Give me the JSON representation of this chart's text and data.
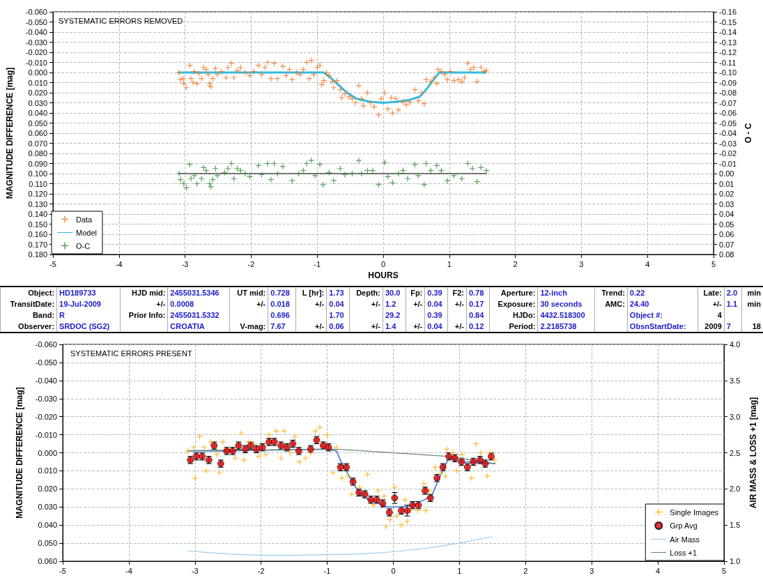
{
  "chart_data": [
    {
      "type": "scatter",
      "title": "SYSTEMATIC ERRORS REMOVED",
      "xlabel": "HOURS",
      "ylabel": "MAGNITUDE DIFFERENCE [mag]",
      "y2label": "O - C",
      "grid": true,
      "legend": "bottom left",
      "xlim": [
        -5,
        5
      ],
      "xticks": [
        -5,
        -4,
        -3,
        -2,
        -1,
        0,
        1,
        2,
        3,
        4,
        5
      ],
      "ylim": [
        0.18,
        -0.06
      ],
      "yticks": [
        {
          "value": -0.06,
          "label": "-0.060"
        },
        {
          "value": -0.05,
          "label": "-0.050"
        },
        {
          "value": -0.04,
          "label": "-0.040"
        },
        {
          "value": -0.03,
          "label": "-0.030"
        },
        {
          "value": -0.02,
          "label": "-0.020"
        },
        {
          "value": -0.01,
          "label": "-0.010"
        },
        {
          "value": 0,
          "label": "0.000"
        },
        {
          "value": 0.01,
          "label": "0.010"
        },
        {
          "value": 0.02,
          "label": "0.020"
        },
        {
          "value": 0.03,
          "label": "0.030"
        },
        {
          "value": 0.04,
          "label": "0.040"
        },
        {
          "value": 0.05,
          "label": "0.050"
        },
        {
          "value": 0.06,
          "label": "0.060"
        },
        {
          "value": 0.07,
          "label": "0.070"
        },
        {
          "value": 0.08,
          "label": "0.080"
        },
        {
          "value": 0.09,
          "label": "0.090"
        },
        {
          "value": 0.1,
          "label": "0.100"
        },
        {
          "value": 0.11,
          "label": "0.110"
        },
        {
          "value": 0.12,
          "label": "0.120"
        },
        {
          "value": 0.13,
          "label": "0.130"
        },
        {
          "value": 0.14,
          "label": "0.140"
        },
        {
          "value": 0.15,
          "label": "0.150"
        },
        {
          "value": 0.16,
          "label": "0.160"
        },
        {
          "value": 0.17,
          "label": "0.170"
        },
        {
          "value": 0.18,
          "label": "0.180"
        }
      ],
      "y2lim": [
        0.08,
        -0.16
      ],
      "y2ticks": [
        {
          "value": -0.16,
          "label": "-0.16"
        },
        {
          "value": -0.15,
          "label": "-0.15"
        },
        {
          "value": -0.14,
          "label": "-0.14"
        },
        {
          "value": -0.13,
          "label": "-0.13"
        },
        {
          "value": -0.12,
          "label": "-0.12"
        },
        {
          "value": -0.11,
          "label": "-0.11"
        },
        {
          "value": -0.1,
          "label": "-0.10"
        },
        {
          "value": -0.09,
          "label": "-0.09"
        },
        {
          "value": -0.08,
          "label": "-0.08"
        },
        {
          "value": -0.07,
          "label": "-0.07"
        },
        {
          "value": -0.06,
          "label": "-0.06"
        },
        {
          "value": -0.05,
          "label": "-0.05"
        },
        {
          "value": -0.04,
          "label": "-0.04"
        },
        {
          "value": -0.03,
          "label": "-0.03"
        },
        {
          "value": -0.02,
          "label": "-0.02"
        },
        {
          "value": -0.01,
          "label": "-0.01"
        },
        {
          "value": 0,
          "label": "0.00"
        },
        {
          "value": 0.01,
          "label": "0.01"
        },
        {
          "value": 0.02,
          "label": "0.02"
        },
        {
          "value": 0.03,
          "label": "0.03"
        },
        {
          "value": 0.04,
          "label": "0.04"
        },
        {
          "value": 0.05,
          "label": "0.05"
        },
        {
          "value": 0.06,
          "label": "0.06"
        },
        {
          "value": 0.07,
          "label": "0.07"
        },
        {
          "value": 0.08,
          "label": "0.08"
        }
      ],
      "series": [
        {
          "type": "scatter",
          "name": "Data",
          "color": "#f07020",
          "marker": "cross",
          "x": [
            -3.09,
            -3.07,
            -3.03,
            -3.02,
            -2.98,
            -2.93,
            -2.91,
            -2.88,
            -2.86,
            -2.82,
            -2.79,
            -2.75,
            -2.72,
            -2.68,
            -2.65,
            -2.63,
            -2.61,
            -2.58,
            -2.54,
            -2.51,
            -2.45,
            -2.38,
            -2.35,
            -2.3,
            -2.26,
            -2.21,
            -2.16,
            -2.09,
            -2.02,
            -1.96,
            -1.89,
            -1.84,
            -1.79,
            -1.75,
            -1.7,
            -1.65,
            -1.6,
            -1.52,
            -1.47,
            -1.42,
            -1.38,
            -1.31,
            -1.26,
            -1.21,
            -1.16,
            -1.12,
            -1.09,
            -1.05,
            -1.0,
            -0.96,
            -0.93,
            -0.9,
            -0.86,
            -0.82,
            -0.77,
            -0.75,
            -0.7,
            -0.65,
            -0.63,
            -0.58,
            -0.52,
            -0.47,
            -0.42,
            -0.37,
            -0.33,
            -0.3,
            -0.24,
            -0.19,
            -0.14,
            -0.07,
            -0.03,
            0.02,
            0.07,
            0.12,
            0.14,
            0.19,
            0.23,
            0.3,
            0.35,
            0.4,
            0.48,
            0.53,
            0.58,
            0.62,
            0.65,
            0.72,
            0.77,
            0.81,
            0.83,
            0.88,
            0.93,
            0.97,
            1.02,
            1.07,
            1.14,
            1.19,
            1.23,
            1.28,
            1.32,
            1.37,
            1.42,
            1.48,
            1.53,
            1.56
          ],
          "values": [
            0,
            0.007,
            0.006,
            0.011,
            0.015,
            -0.007,
            0.006,
            0.01,
            -0.001,
            0.011,
            0.001,
            0.006,
            -0.005,
            -0.003,
            0.002,
            0.011,
            0.014,
            0.006,
            -0.004,
            0.002,
            -0.001,
            0.005,
            -0.005,
            -0.009,
            0.005,
            -0.002,
            -0.005,
            0,
            0.003,
            -0.001,
            -0.007,
            0.002,
            -0.005,
            -0.01,
            0.006,
            -0.009,
            0.006,
            -0.006,
            0.003,
            -0.003,
            0.007,
            0,
            0.002,
            -0.003,
            -0.01,
            0.006,
            -0.012,
            0.002,
            -0.005,
            -0.007,
            0.012,
            0.008,
            0,
            0.003,
            0.009,
            0.015,
            0.008,
            0.017,
            0.025,
            0.021,
            0.024,
            0.026,
            0.03,
            0.013,
            0.026,
            0.033,
            0.02,
            0.03,
            0.034,
            0.042,
            0.026,
            0.02,
            0.036,
            0.025,
            0.04,
            0.026,
            0.037,
            0.029,
            0.032,
            0.029,
            0.017,
            0.028,
            0.02,
            0.031,
            0.007,
            0.009,
            0.005,
            0.011,
            -0.003,
            -0.001,
            0.002,
            0.007,
            -0.001,
            0.008,
            0.007,
            0.009,
            0.005,
            -0.009,
            -0.003,
            -0.005,
            0.009,
            -0.005,
            -0.001,
            -0.002
          ]
        },
        {
          "type": "line",
          "name": "Model",
          "color": "#33bbdd",
          "marker": "none",
          "x": [
            -3.1,
            -0.9,
            -0.8,
            -0.7,
            -0.6,
            -0.5,
            -0.4,
            -0.2,
            0,
            0.2,
            0.4,
            0.55,
            0.65,
            0.75,
            0.85,
            1.55
          ],
          "values": [
            0,
            0,
            0.005,
            0.011,
            0.017,
            0.022,
            0.026,
            0.029,
            0.03,
            0.029,
            0.027,
            0.024,
            0.017,
            0.008,
            0,
            0
          ]
        },
        {
          "type": "scatter",
          "name": "O-C",
          "color": "#2e8b2e",
          "marker": "cross",
          "axis": "y2",
          "x": [
            -3.09,
            -3.07,
            -3.02,
            -2.98,
            -2.93,
            -2.91,
            -2.86,
            -2.82,
            -2.75,
            -2.72,
            -2.68,
            -2.63,
            -2.61,
            -2.58,
            -2.54,
            -2.51,
            -2.4,
            -2.35,
            -2.3,
            -2.26,
            -2.21,
            -2.16,
            -2.09,
            -2.02,
            -1.89,
            -1.84,
            -1.75,
            -1.7,
            -1.65,
            -1.6,
            -1.52,
            -1.38,
            -1.28,
            -1.21,
            -1.16,
            -1.09,
            -1.03,
            -0.96,
            -0.91,
            -0.82,
            -0.75,
            -0.65,
            -0.58,
            -0.47,
            -0.37,
            -0.33,
            -0.24,
            -0.16,
            -0.07,
            0.02,
            0.07,
            0.14,
            0.23,
            0.3,
            0.37,
            0.48,
            0.53,
            0.62,
            0.65,
            0.72,
            0.81,
            0.88,
            0.97,
            1.07,
            1.19,
            1.28,
            1.35,
            1.42,
            1.48,
            1.56
          ],
          "values": [
            0,
            0.006,
            0.01,
            0.014,
            -0.009,
            0.005,
            0.002,
            0.01,
            0.005,
            -0.006,
            -0.003,
            0.01,
            0.013,
            0.006,
            -0.005,
            0.002,
            -0.001,
            -0.005,
            -0.01,
            0.005,
            -0.005,
            -0.003,
            0,
            0.003,
            -0.008,
            0.001,
            -0.01,
            0.006,
            -0.01,
            0,
            -0.007,
            0.007,
            0,
            -0.003,
            -0.01,
            -0.013,
            0.002,
            -0.009,
            0.011,
            -0.001,
            0.007,
            -0.005,
            0.001,
            0,
            -0.013,
            0,
            -0.003,
            -0.003,
            0.011,
            -0.011,
            0.003,
            0.009,
            0,
            -0.003,
            0.005,
            -0.009,
            0.002,
            0.011,
            -0.01,
            -0.003,
            -0.008,
            -0.003,
            0.007,
            0.002,
            0.005,
            -0.01,
            -0.005,
            0.008,
            -0.006,
            -0.003
          ]
        },
        {
          "type": "line",
          "color": "#000000",
          "marker": "none",
          "axis": "y2",
          "x": [
            -3.1,
            1.56
          ],
          "values": [
            0,
            0
          ]
        }
      ]
    },
    {
      "type": "other",
      "cell_labels": [
        [
          "Object:",
          "HD189733",
          "HJD mid:",
          "2455031.5346",
          "UT mid:",
          "0.728",
          "L [hr]:",
          "1.73",
          "Depth:",
          "30.0",
          "Fp:",
          "0.39",
          "F2:",
          "0.78",
          "Aperture:",
          "12-inch",
          "Trend:",
          "0.22",
          "Late:",
          "2.0",
          "min"
        ],
        [
          "TransitDate:",
          "19-Jul-2009",
          "+/-",
          "0.0008",
          "+/-",
          "0.018",
          "+/-",
          "0.04",
          "+/-",
          "1.2",
          "+/-",
          "0.04",
          "+/-",
          "0.17",
          "Exposure:",
          "30 seconds",
          "AMC:",
          "24.40",
          "+/-",
          "1.1",
          "min"
        ],
        [
          "Band:",
          "R",
          "Prior Info:",
          "2455031.5332",
          null,
          "0.696",
          null,
          "1.70",
          null,
          "29.2",
          null,
          "0.39",
          null,
          "0.84",
          "HJDo:",
          "4432.518300",
          null,
          "Object #:",
          "4",
          null,
          null
        ],
        [
          "Observer:",
          "SRDOC (SG2)",
          null,
          "CROATIA",
          "V-mag:",
          "7.67",
          "+/-",
          "0.06",
          "+/-",
          "1.4",
          "+/-",
          "0.04",
          "+/-",
          "0.12",
          "Period:",
          "2.2185738",
          null,
          "ObsnStartDate:",
          "2009",
          "7",
          "18"
        ]
      ]
    },
    {
      "type": "scatter",
      "title": "SYSTEMATIC ERRORS PRESENT",
      "ylabel": "MAGNITUDE DIFFERENCE [mag]",
      "y2label": "AIR MASS & LOSS +1 [mag]",
      "grid": true,
      "legend": "bottom right",
      "xlim": [
        -5,
        5
      ],
      "xticks": [
        -5,
        -4,
        -3,
        -2,
        -1,
        0,
        1,
        2,
        3,
        4,
        5
      ],
      "ylim": [
        0.06,
        -0.06
      ],
      "yticks": [
        {
          "value": -0.06,
          "label": "-0.060"
        },
        {
          "value": -0.05,
          "label": "-0.050"
        },
        {
          "value": -0.04,
          "label": "-0.040"
        },
        {
          "value": -0.03,
          "label": "-0.030"
        },
        {
          "value": -0.02,
          "label": "-0.020"
        },
        {
          "value": -0.01,
          "label": "-0.010"
        },
        {
          "value": 0,
          "label": "0.000"
        },
        {
          "value": 0.01,
          "label": "0.010"
        },
        {
          "value": 0.02,
          "label": "0.020"
        },
        {
          "value": 0.03,
          "label": "0.030"
        },
        {
          "value": 0.04,
          "label": "0.040"
        },
        {
          "value": 0.05,
          "label": "0.050"
        },
        {
          "value": 0.06,
          "label": "0.060"
        }
      ],
      "y2lim": [
        1,
        4
      ],
      "y2ticks": [
        {
          "value": 1,
          "label": "1.0"
        },
        {
          "value": 1.5,
          "label": "1.5"
        },
        {
          "value": 2,
          "label": "2.0"
        },
        {
          "value": 2.5,
          "label": "2.5"
        },
        {
          "value": 3,
          "label": "3.0"
        },
        {
          "value": 3.5,
          "label": "3.5"
        },
        {
          "value": 4,
          "label": "4.0"
        }
      ],
      "series": [
        {
          "type": "scatter",
          "name": "Single Images",
          "color": "#ffaa00",
          "marker": "cross",
          "x": [
            -3.11,
            -3.02,
            -3.0,
            -2.93,
            -2.86,
            -2.83,
            -2.76,
            -2.67,
            -2.63,
            -2.58,
            -2.49,
            -2.39,
            -2.3,
            -2.26,
            -2.19,
            -2.11,
            -2.04,
            -1.93,
            -1.88,
            -1.77,
            -1.7,
            -1.65,
            -1.56,
            -1.49,
            -1.42,
            -1.33,
            -1.25,
            -1.18,
            -1.11,
            -1.0,
            -0.91,
            -0.86,
            -0.78,
            -0.68,
            -0.63,
            -0.51,
            -0.39,
            -0.3,
            -0.23,
            -0.14,
            -0.11,
            -0.05,
            0.02,
            0.05,
            0.12,
            0.18,
            0.21,
            0.26,
            0.37,
            0.46,
            0.49,
            0.54,
            0.63,
            0.72,
            0.79,
            0.81,
            0.9,
            0.96,
            1.04,
            1.18,
            1.25,
            1.32,
            1.42,
            1.46,
            1.53
          ],
          "values": [
            -0.001,
            -0.003,
            0.014,
            -0.009,
            -0.003,
            0.01,
            -0.006,
            0.001,
            0.011,
            -0.006,
            -0.002,
            0.003,
            -0.011,
            0.004,
            -0.006,
            -0.005,
            0.002,
            0.001,
            -0.01,
            -0.012,
            0.003,
            -0.012,
            0,
            -0.009,
            0.005,
            0.003,
            0,
            -0.012,
            -0.014,
            -0.01,
            0.011,
            -0.003,
            0.014,
            0.013,
            0.023,
            0.019,
            0.012,
            0.029,
            0.021,
            0.024,
            0.041,
            0.037,
            0.019,
            0.035,
            0.04,
            0.026,
            0.038,
            0.032,
            0.032,
            0.017,
            0.032,
            0.021,
            0.008,
            0.011,
            0.013,
            -0.002,
            0,
            0.01,
            0.001,
            0.014,
            -0.005,
            0,
            0.013,
            0,
            0.004
          ]
        },
        {
          "type": "scatter",
          "name": "Grp Avg",
          "color": "#e00000",
          "marker": "circle",
          "x": [
            -3.07,
            -2.98,
            -2.89,
            -2.79,
            -2.71,
            -2.61,
            -2.52,
            -2.43,
            -2.34,
            -2.24,
            -2.16,
            -2.07,
            -1.98,
            -1.88,
            -1.8,
            -1.7,
            -1.61,
            -1.52,
            -1.43,
            -1.25,
            -1.16,
            -1.06,
            -0.98,
            -0.8,
            -0.71,
            -0.61,
            -0.52,
            -0.43,
            -0.34,
            -0.25,
            -0.16,
            -0.06,
            0.02,
            0.12,
            0.21,
            0.29,
            0.38,
            0.48,
            0.56,
            0.66,
            0.75,
            0.84,
            0.93,
            1.03,
            1.12,
            1.21,
            1.31,
            1.39,
            1.48
          ],
          "values": [
            0.004,
            0.002,
            0.002,
            0.004,
            -0.004,
            0.006,
            -0.001,
            -0.001,
            -0.004,
            -0.002,
            -0.004,
            -0.002,
            -0.003,
            -0.006,
            -0.006,
            -0.004,
            -0.003,
            -0.005,
            -0.001,
            -0.002,
            -0.007,
            -0.004,
            -0.003,
            0.008,
            0.008,
            0.016,
            0.022,
            0.023,
            0.026,
            0.026,
            0.028,
            0.033,
            0.025,
            0.032,
            0.032,
            0.029,
            0.029,
            0.021,
            0.025,
            0.014,
            0.008,
            0.002,
            0.003,
            0.005,
            0.008,
            0.005,
            0.004,
            0.006,
            0.002
          ],
          "errors": [
            0.002,
            0.002,
            0.002,
            0.002,
            0.002,
            0.002,
            0.002,
            0.002,
            0.002,
            0.002,
            0.002,
            0.002,
            0.002,
            0.002,
            0.002,
            0.002,
            0.002,
            0.002,
            0.002,
            0.002,
            0.002,
            0.002,
            0.002,
            0.002,
            0.002,
            0.002,
            0.002,
            0.002,
            0.002,
            0.002,
            0.002,
            0.002,
            0.003,
            0.002,
            0.003,
            0.002,
            0.002,
            0.002,
            0.002,
            0.002,
            0.002,
            0.002,
            0.002,
            0.002,
            0.002,
            0.002,
            0.002,
            0.002,
            0.002
          ]
        },
        {
          "type": "line",
          "color": "#3a6fd8",
          "marker": "none",
          "x": [
            -3.11,
            -2.61,
            -1.0,
            -0.86,
            -0.79,
            -0.65,
            -0.51,
            -0.37,
            -0.09,
            0.12,
            0.3,
            0.47,
            0.58,
            0.68,
            0.84,
            1.07,
            1.54
          ],
          "values": [
            -0.001,
            -0.001,
            -0.002,
            -0.001,
            0.005,
            0.014,
            0.023,
            0.026,
            0.03,
            0.03,
            0.029,
            0.026,
            0.024,
            0.015,
            0.003,
            0.005,
            0.006
          ]
        },
        {
          "type": "line",
          "name": "Air Mass",
          "color": "#99ccee",
          "marker": "none",
          "axis": "y2",
          "x": [
            -3.1,
            -2.5,
            -2,
            -1.5,
            -1,
            -0.5,
            0,
            0.5,
            1,
            1.5
          ],
          "values": [
            1.14,
            1.1,
            1.08,
            1.08,
            1.09,
            1.1,
            1.13,
            1.18,
            1.25,
            1.34
          ]
        },
        {
          "type": "line",
          "name": "Loss +1",
          "color": "#6f8a6f",
          "marker": "none",
          "axis": "y2",
          "x": [
            -3.11,
            -0.86,
            0.82,
            1.54
          ],
          "values": [
            2.53,
            2.55,
            2.45,
            2.35
          ]
        }
      ]
    }
  ]
}
